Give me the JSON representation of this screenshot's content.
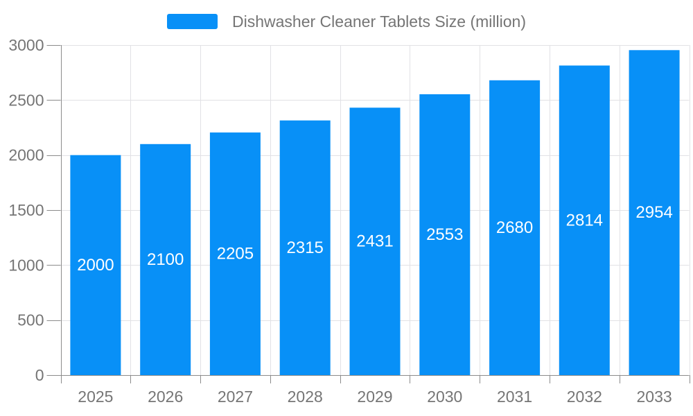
{
  "legend": {
    "label": "Dishwasher Cleaner Tablets Size (million)"
  },
  "chart_data": {
    "type": "bar",
    "title": "",
    "categories": [
      "2025",
      "2026",
      "2027",
      "2028",
      "2029",
      "2030",
      "2031",
      "2032",
      "2033"
    ],
    "values": [
      2000,
      2100,
      2205,
      2315,
      2431,
      2553,
      2680,
      2814,
      2954
    ],
    "series_name": "Dishwasher Cleaner Tablets Size (million)",
    "xlabel": "",
    "ylabel": "",
    "ylim": [
      0,
      3000
    ],
    "yticks": [
      0,
      500,
      1000,
      1500,
      2000,
      2500,
      3000
    ],
    "grid": true,
    "bar_labels_inside": true,
    "legend_position": "top",
    "colors": {
      "bar": "#0890F7",
      "bar_label": "#FFFFFF",
      "axis_text": "#757575",
      "axis_line": "#8B8B8B",
      "grid_line": "#E1E1E5",
      "background": "#FFFFFF"
    }
  }
}
